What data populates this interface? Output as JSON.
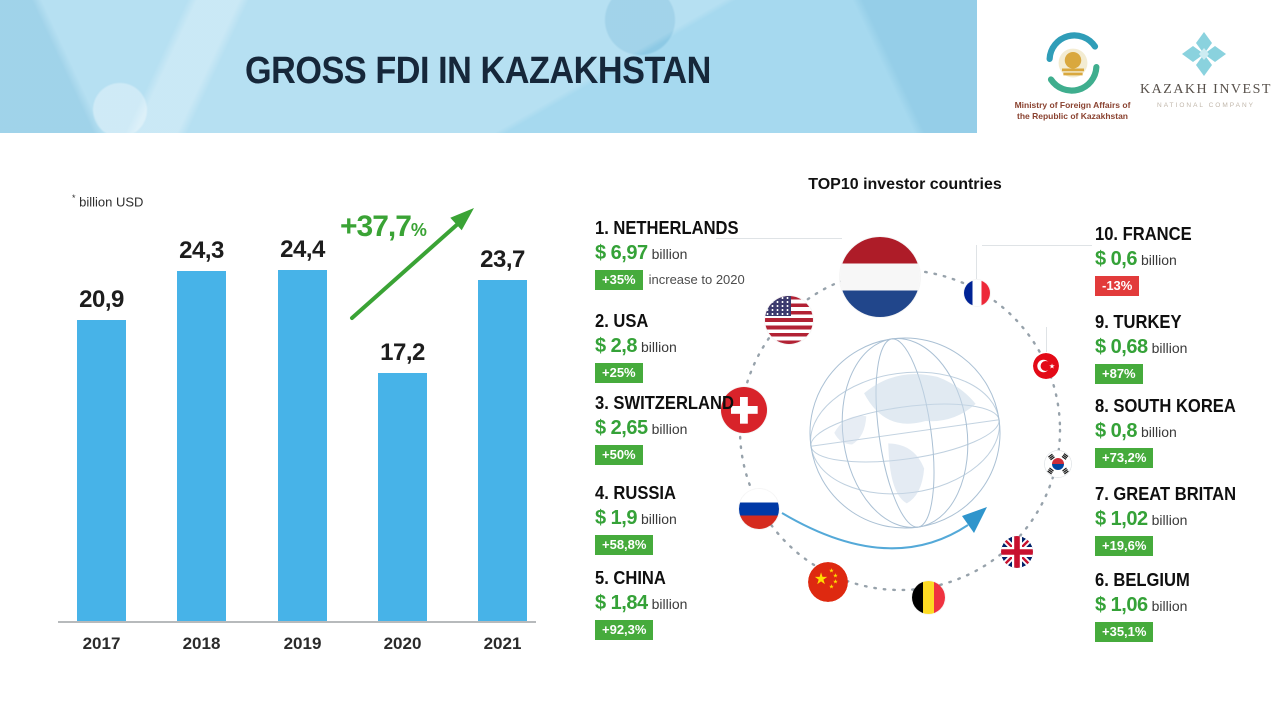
{
  "header": {
    "title": "GROSS FDI IN KAZAKHSTAN",
    "ministry_logo": {
      "caption_line1": "Ministry of Foreign Affairs of",
      "caption_line2": "the Republic of Kazakhstan"
    },
    "kazakh_invest_logo": {
      "name": "KAZAKH INVEST",
      "subtitle": "NATIONAL COMPANY"
    }
  },
  "colors": {
    "band_blue": "#a6d9ef",
    "bar_blue": "#47b3e8",
    "green": "#3aa335",
    "badge_green": "#46ab3c",
    "badge_red": "#e23b3b",
    "title_navy": "#16273a"
  },
  "chart_note": {
    "mark": "*",
    "text": "billion USD"
  },
  "growth": {
    "value": "+37,7",
    "suffix": "%"
  },
  "top10": {
    "title": "TOP10 investor countries"
  },
  "investors": [
    {
      "country": "netherlands",
      "label": "1. NETHERLANDS",
      "amount": "$ 6,97",
      "unit": "billion",
      "change": "+35%",
      "note": "increase to 2020"
    },
    {
      "country": "usa",
      "label": "2. USA",
      "amount": "$ 2,8",
      "unit": "billion",
      "change": "+25%"
    },
    {
      "country": "switzerland",
      "label": "3. SWITZERLAND",
      "amount": "$ 2,65",
      "unit": "billion",
      "change": "+50%"
    },
    {
      "country": "russia",
      "label": "4. RUSSIA",
      "amount": "$ 1,9",
      "unit": "billion",
      "change": "+58,8%"
    },
    {
      "country": "china",
      "label": "5. CHINA",
      "amount": "$ 1,84",
      "unit": "billion",
      "change": "+92,3%"
    },
    {
      "country": "france",
      "label": "10. FRANCE",
      "amount": "$ 0,6",
      "unit": "billion",
      "change": "-13%"
    },
    {
      "country": "turkey",
      "label": "9. TURKEY",
      "amount": "$ 0,68",
      "unit": "billion",
      "change": "+87%"
    },
    {
      "country": "south-korea",
      "label": "8. SOUTH KOREA",
      "amount": "$ 0,8",
      "unit": "billion",
      "change": "+73,2%"
    },
    {
      "country": "great-britain",
      "label": "7. GREAT BRITAN",
      "amount": "$ 1,02",
      "unit": "billion",
      "change": "+19,6%"
    },
    {
      "country": "belgium",
      "label": "6. BELGIUM",
      "amount": "$ 1,06",
      "unit": "billion",
      "change": "+35,1%"
    }
  ],
  "chart_data": [
    {
      "type": "bar",
      "title": "Gross FDI in Kazakhstan by year",
      "unit": "billion USD",
      "categories": [
        "2017",
        "2018",
        "2019",
        "2020",
        "2021"
      ],
      "values": [
        20.9,
        24.3,
        24.4,
        17.2,
        23.7
      ],
      "value_labels": [
        "20,9",
        "24,3",
        "24,4",
        "17,2",
        "23,7"
      ],
      "annotation": "+37,7% growth from 2020 to 2021",
      "bar_color": "#47b3e8",
      "ylim": [
        0,
        26
      ],
      "grid": false,
      "legend": "none"
    },
    {
      "type": "table",
      "title": "TOP10 investor countries",
      "columns": [
        "rank",
        "country",
        "amount_billion_usd",
        "change_percent"
      ],
      "rows": [
        [
          1,
          "Netherlands",
          6.97,
          35
        ],
        [
          2,
          "USA",
          2.8,
          25
        ],
        [
          3,
          "Switzerland",
          2.65,
          50
        ],
        [
          4,
          "Russia",
          1.9,
          58.8
        ],
        [
          5,
          "China",
          1.84,
          92.3
        ],
        [
          6,
          "Belgium",
          1.06,
          35.1
        ],
        [
          7,
          "Great Britan",
          1.02,
          19.6
        ],
        [
          8,
          "South Korea",
          0.8,
          73.2
        ],
        [
          9,
          "Turkey",
          0.68,
          87
        ],
        [
          10,
          "France",
          0.6,
          -13
        ]
      ]
    }
  ]
}
